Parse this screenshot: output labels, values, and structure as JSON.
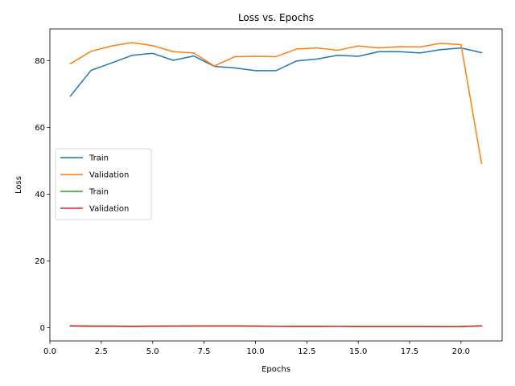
{
  "chart_data": {
    "type": "line",
    "title": "Loss vs. Epochs",
    "xlabel": "Epochs",
    "ylabel": "Loss",
    "xlim": [
      0,
      22
    ],
    "ylim": [
      -4,
      89.5
    ],
    "xticks": [
      0.0,
      2.5,
      5.0,
      7.5,
      10.0,
      12.5,
      15.0,
      17.5,
      20.0
    ],
    "xtick_labels": [
      "0.0",
      "2.5",
      "5.0",
      "7.5",
      "10.0",
      "12.5",
      "15.0",
      "17.5",
      "20.0"
    ],
    "yticks": [
      0,
      20,
      40,
      60,
      80
    ],
    "ytick_labels": [
      "0",
      "20",
      "40",
      "60",
      "80"
    ],
    "grid": false,
    "legend_position": "center-left",
    "x": [
      1,
      2,
      3,
      4,
      5,
      6,
      7,
      8,
      9,
      10,
      11,
      12,
      13,
      14,
      15,
      16,
      17,
      18,
      19,
      20,
      21
    ],
    "series": [
      {
        "name": "Train",
        "color": "#1f77b4",
        "values": [
          69.4,
          77.1,
          79.3,
          81.6,
          82.2,
          80.1,
          81.4,
          78.3,
          77.8,
          77.0,
          77.0,
          79.9,
          80.5,
          81.6,
          81.3,
          82.7,
          82.7,
          82.3,
          83.3,
          83.8,
          82.4
        ]
      },
      {
        "name": "Validation",
        "color": "#ff7f0e",
        "values": [
          79.1,
          82.8,
          84.4,
          85.4,
          84.5,
          82.7,
          82.3,
          78.4,
          81.2,
          81.3,
          81.2,
          83.5,
          83.8,
          83.1,
          84.4,
          83.8,
          84.2,
          84.1,
          85.2,
          84.8,
          49.2
        ]
      },
      {
        "name": "Train",
        "color": "#2ca02c",
        "values": [
          0.5,
          0.4,
          0.4,
          0.35,
          0.4,
          0.45,
          0.45,
          0.5,
          0.5,
          0.45,
          0.4,
          0.35,
          0.35,
          0.4,
          0.35,
          0.35,
          0.35,
          0.35,
          0.3,
          0.3,
          0.5
        ]
      },
      {
        "name": "Validation",
        "color": "#d62728",
        "values": [
          0.55,
          0.45,
          0.45,
          0.4,
          0.45,
          0.45,
          0.5,
          0.5,
          0.5,
          0.45,
          0.4,
          0.4,
          0.4,
          0.4,
          0.35,
          0.35,
          0.35,
          0.35,
          0.3,
          0.35,
          0.55
        ]
      }
    ]
  }
}
